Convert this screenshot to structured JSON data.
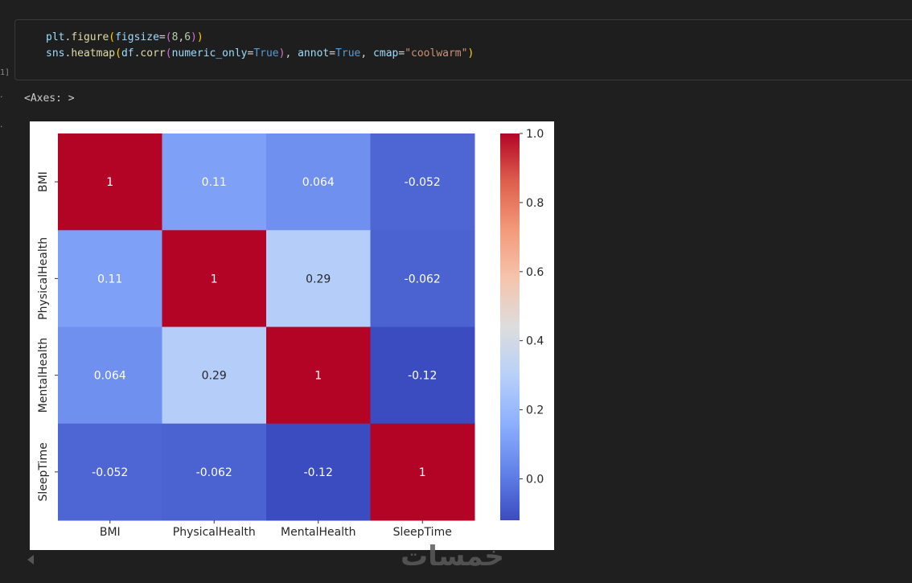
{
  "cell": {
    "exec_count": "1]",
    "code_lines": [
      [
        {
          "t": "plt",
          "c": "var"
        },
        {
          "t": ".",
          "c": ""
        },
        {
          "t": "figure",
          "c": "fn"
        },
        {
          "t": "(",
          "c": "p1"
        },
        {
          "t": "figsize",
          "c": "var"
        },
        {
          "t": "=",
          "c": ""
        },
        {
          "t": "(",
          "c": "p2"
        },
        {
          "t": "8",
          "c": "num"
        },
        {
          "t": ",",
          "c": ""
        },
        {
          "t": "6",
          "c": "num"
        },
        {
          "t": ")",
          "c": "p2"
        },
        {
          "t": ")",
          "c": "p1"
        }
      ],
      [
        {
          "t": "sns",
          "c": "var"
        },
        {
          "t": ".",
          "c": ""
        },
        {
          "t": "heatmap",
          "c": "fn"
        },
        {
          "t": "(",
          "c": "p1"
        },
        {
          "t": "df",
          "c": "var"
        },
        {
          "t": ".",
          "c": ""
        },
        {
          "t": "corr",
          "c": "fn"
        },
        {
          "t": "(",
          "c": "p2"
        },
        {
          "t": "numeric_only",
          "c": "var"
        },
        {
          "t": "=",
          "c": ""
        },
        {
          "t": "True",
          "c": "kw"
        },
        {
          "t": ")",
          "c": "p2"
        },
        {
          "t": ", ",
          "c": ""
        },
        {
          "t": "annot",
          "c": "var"
        },
        {
          "t": "=",
          "c": ""
        },
        {
          "t": "True",
          "c": "kw"
        },
        {
          "t": ", ",
          "c": ""
        },
        {
          "t": "cmap",
          "c": "var"
        },
        {
          "t": "=",
          "c": ""
        },
        {
          "t": "\"coolwarm\"",
          "c": "str"
        },
        {
          "t": ")",
          "c": "p1"
        }
      ]
    ]
  },
  "output": {
    "repr": "<Axes: >"
  },
  "watermark": "خمسات",
  "chart_data": {
    "type": "heatmap",
    "categories": [
      "BMI",
      "PhysicalHealth",
      "MentalHealth",
      "SleepTime"
    ],
    "matrix": [
      [
        1,
        0.11,
        0.064,
        -0.052
      ],
      [
        0.11,
        1,
        0.29,
        -0.062
      ],
      [
        0.064,
        0.29,
        1,
        -0.12
      ],
      [
        -0.052,
        -0.062,
        -0.12,
        1
      ]
    ],
    "annotations": [
      [
        "1",
        "0.11",
        "0.064",
        "-0.052"
      ],
      [
        "0.11",
        "1",
        "0.29",
        "-0.062"
      ],
      [
        "0.064",
        "0.29",
        "1",
        "-0.12"
      ],
      [
        "-0.052",
        "-0.062",
        "-0.12",
        "1"
      ]
    ],
    "colormap": "coolwarm",
    "vmin": -0.12,
    "vmax": 1,
    "colorbar_ticks": [
      "0.0",
      "0.2",
      "0.4",
      "0.6",
      "0.8",
      "1.0"
    ],
    "colorbar_tick_values": [
      0,
      0.2,
      0.4,
      0.6,
      0.8,
      1.0
    ],
    "legend": "colorbar-right",
    "grid": false
  }
}
